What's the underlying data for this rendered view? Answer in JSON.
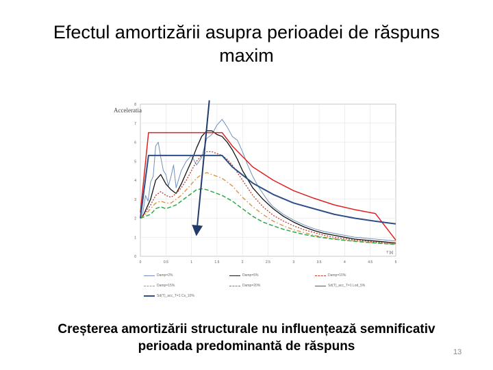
{
  "slide": {
    "title_line1": "Efectul amortizării asupra perioadei de răspuns",
    "title_line2": "maxim",
    "caption_line1": "Creșterea amortizării structurale nu influențează semnificativ",
    "caption_line2": "perioada predominantă de răspuns",
    "page_number": "13"
  },
  "chart_data": {
    "type": "line",
    "ylabel": "Acceleratia",
    "xlabel": "T [s]",
    "xlim": [
      0,
      5
    ],
    "ylim": [
      0,
      8
    ],
    "xticks": [
      "0",
      "0.5",
      "1",
      "1.5",
      "2",
      "2.5",
      "3",
      "3.5",
      "4",
      "4.5",
      "5"
    ],
    "yticks": [
      "0",
      "1",
      "2",
      "3",
      "4",
      "5",
      "6",
      "7",
      "8"
    ],
    "legend_position": "bottom",
    "series": [
      {
        "name": "Damp=2%",
        "color": "#6e8fbf",
        "dash": "",
        "width": 1,
        "x": [
          0,
          0.02,
          0.05,
          0.1,
          0.15,
          0.2,
          0.25,
          0.3,
          0.35,
          0.4,
          0.45,
          0.5,
          0.55,
          0.6,
          0.65,
          0.7,
          0.8,
          0.9,
          1.0,
          1.1,
          1.2,
          1.3,
          1.4,
          1.5,
          1.6,
          1.7,
          1.8,
          1.9,
          2.0,
          2.1,
          2.2,
          2.3,
          2.4,
          2.5,
          2.6,
          2.8,
          3.0,
          3.2,
          3.4,
          3.6,
          3.8,
          4.0,
          4.2,
          4.4,
          4.6,
          4.8,
          5.0
        ],
        "y": [
          2.1,
          2.0,
          2.3,
          3.2,
          2.9,
          3.9,
          4.2,
          5.8,
          6.0,
          5.2,
          4.5,
          4.3,
          3.7,
          4.2,
          4.8,
          3.6,
          4.5,
          5.0,
          5.3,
          4.8,
          5.2,
          6.2,
          6.4,
          6.9,
          7.2,
          6.8,
          6.3,
          6.1,
          5.5,
          4.8,
          4.2,
          3.7,
          3.3,
          2.9,
          2.6,
          2.2,
          1.9,
          1.65,
          1.45,
          1.3,
          1.2,
          1.1,
          1.0,
          0.95,
          0.9,
          0.85,
          0.8
        ]
      },
      {
        "name": "Damp=5%",
        "color": "#111111",
        "dash": "",
        "width": 1.3,
        "x": [
          0,
          0.05,
          0.1,
          0.2,
          0.3,
          0.4,
          0.5,
          0.6,
          0.7,
          0.8,
          0.9,
          1.0,
          1.1,
          1.2,
          1.3,
          1.4,
          1.5,
          1.6,
          1.7,
          1.8,
          1.9,
          2.0,
          2.2,
          2.4,
          2.6,
          2.8,
          3.0,
          3.2,
          3.4,
          3.6,
          3.8,
          4.0,
          4.2,
          4.4,
          4.6,
          4.8,
          5.0
        ],
        "y": [
          2.0,
          2.1,
          2.4,
          3.0,
          4.0,
          4.3,
          3.8,
          3.5,
          3.3,
          3.8,
          4.4,
          5.0,
          5.7,
          6.3,
          6.6,
          6.6,
          6.4,
          6.3,
          6.0,
          5.6,
          5.1,
          4.5,
          3.6,
          3.0,
          2.5,
          2.1,
          1.8,
          1.55,
          1.35,
          1.2,
          1.1,
          1.0,
          0.9,
          0.85,
          0.8,
          0.75,
          0.7
        ]
      },
      {
        "name": "Damp=10%",
        "color": "#c0392b",
        "dash": "2,2",
        "width": 1.3,
        "x": [
          0,
          0.1,
          0.2,
          0.3,
          0.4,
          0.5,
          0.6,
          0.7,
          0.8,
          0.9,
          1.0,
          1.1,
          1.2,
          1.3,
          1.4,
          1.5,
          1.6,
          1.7,
          1.8,
          1.9,
          2.0,
          2.2,
          2.4,
          2.6,
          2.8,
          3.0,
          3.2,
          3.4,
          3.6,
          3.8,
          4.0,
          4.2,
          4.4,
          4.6,
          4.8,
          5.0
        ],
        "y": [
          2.0,
          2.3,
          2.7,
          3.2,
          3.4,
          3.2,
          3.1,
          3.3,
          3.6,
          4.0,
          4.5,
          5.0,
          5.3,
          5.5,
          5.5,
          5.4,
          5.3,
          5.1,
          4.8,
          4.4,
          4.0,
          3.2,
          2.6,
          2.15,
          1.85,
          1.6,
          1.4,
          1.25,
          1.1,
          1.0,
          0.92,
          0.86,
          0.8,
          0.75,
          0.72,
          0.68
        ]
      },
      {
        "name": "Damp=15%",
        "color": "#d98a3a",
        "dash": "6,3,1.5,3",
        "width": 1.3,
        "x": [
          0,
          0.1,
          0.2,
          0.3,
          0.4,
          0.5,
          0.6,
          0.7,
          0.8,
          0.9,
          1.0,
          1.1,
          1.2,
          1.3,
          1.4,
          1.5,
          1.6,
          1.7,
          1.8,
          1.9,
          2.0,
          2.2,
          2.4,
          2.6,
          2.8,
          3.0,
          3.2,
          3.4,
          3.6,
          3.8,
          4.0,
          4.2,
          4.4,
          4.6,
          4.8,
          5.0
        ],
        "y": [
          2.0,
          2.2,
          2.5,
          2.8,
          2.9,
          2.8,
          2.8,
          3.0,
          3.2,
          3.5,
          3.8,
          4.1,
          4.3,
          4.4,
          4.3,
          4.2,
          4.1,
          3.9,
          3.7,
          3.4,
          3.1,
          2.6,
          2.2,
          1.85,
          1.6,
          1.4,
          1.25,
          1.1,
          1.0,
          0.92,
          0.85,
          0.8,
          0.75,
          0.7,
          0.67,
          0.64
        ]
      },
      {
        "name": "Damp=20%",
        "color": "#2ea84a",
        "dash": "6,3",
        "width": 1.5,
        "x": [
          0,
          0.1,
          0.2,
          0.3,
          0.4,
          0.5,
          0.6,
          0.7,
          0.8,
          0.9,
          1.0,
          1.1,
          1.2,
          1.3,
          1.4,
          1.5,
          1.6,
          1.7,
          1.8,
          1.9,
          2.0,
          2.2,
          2.4,
          2.6,
          2.8,
          3.0,
          3.2,
          3.4,
          3.6,
          3.8,
          4.0,
          4.2,
          4.4,
          4.6,
          4.8,
          5.0
        ],
        "y": [
          2.0,
          2.1,
          2.2,
          2.5,
          2.6,
          2.5,
          2.6,
          2.7,
          2.9,
          3.1,
          3.3,
          3.5,
          3.55,
          3.5,
          3.4,
          3.3,
          3.2,
          3.05,
          2.9,
          2.7,
          2.5,
          2.1,
          1.8,
          1.6,
          1.42,
          1.28,
          1.15,
          1.05,
          0.97,
          0.9,
          0.84,
          0.79,
          0.74,
          0.7,
          0.66,
          0.63
        ]
      },
      {
        "name": "Sd(T)_acc_T=1 Lod_5%",
        "color": "#e02020",
        "dash": "",
        "width": 1.5,
        "x": [
          0,
          0.16,
          1.6,
          1.8,
          2.2,
          2.6,
          3.0,
          3.4,
          3.8,
          4.2,
          4.6,
          5.0
        ],
        "y": [
          2.3,
          6.5,
          6.5,
          5.8,
          4.7,
          4.0,
          3.45,
          3.05,
          2.7,
          2.45,
          2.25,
          0.85
        ]
      },
      {
        "name": "Sd(T)_acc_T=1 Cs_10%",
        "color": "#2d4f86",
        "dash": "",
        "width": 2,
        "x": [
          0,
          0.16,
          1.6,
          1.8,
          2.2,
          2.6,
          3.0,
          3.4,
          3.8,
          4.2,
          4.6,
          5.0
        ],
        "y": [
          2.0,
          5.3,
          5.3,
          4.7,
          3.85,
          3.25,
          2.8,
          2.5,
          2.2,
          2.0,
          1.84,
          1.7
        ]
      }
    ],
    "annotations": [
      {
        "type": "arrow",
        "color": "#1f3a6b",
        "x_start": 1.35,
        "y_start": 8.2,
        "x_end": 1.1,
        "y_end": 1.2
      }
    ]
  },
  "legend_layout": [
    {
      "series": 0,
      "col": 0,
      "row": 0
    },
    {
      "series": 1,
      "col": 1,
      "row": 0
    },
    {
      "series": 2,
      "col": 2,
      "row": 0
    },
    {
      "series": 3,
      "col": 0,
      "row": 1
    },
    {
      "series": 4,
      "col": 1,
      "row": 1
    },
    {
      "series": 5,
      "col": 2,
      "row": 1
    },
    {
      "series": 6,
      "col": 0,
      "row": 2
    }
  ]
}
